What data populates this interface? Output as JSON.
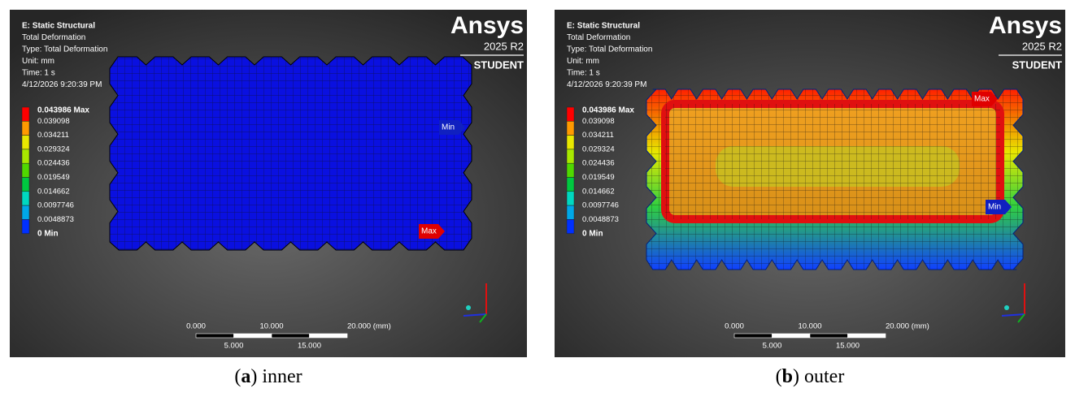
{
  "panels": [
    {
      "header": [
        "E: Static Structural",
        "Total Deformation",
        "Type: Total Deformation",
        "Unit: mm",
        "Time: 1 s",
        "4/12/2026 9:20:39 PM"
      ],
      "logo": {
        "brand": "Ansys",
        "version": "2025 R2",
        "edition": "STUDENT"
      },
      "legend": {
        "labels": [
          "0.043986 Max",
          "0.039098",
          "0.034211",
          "0.029324",
          "0.024436",
          "0.019549",
          "0.014662",
          "0.0097746",
          "0.0048873",
          "0 Min"
        ],
        "colors": [
          "#ff0000",
          "#ff9a00",
          "#e8e800",
          "#a8e800",
          "#50d800",
          "#00c840",
          "#00d8c0",
          "#00a8e8",
          "#0030ff"
        ]
      },
      "max_label": "Max",
      "min_label": "Min",
      "scale": {
        "top": [
          "0.000",
          "10.000",
          "20.000 (mm)"
        ],
        "bottom": [
          "5.000",
          "15.000"
        ]
      },
      "caption": [
        "(",
        "a",
        ") inner"
      ]
    },
    {
      "header": [
        "E: Static Structural",
        "Total Deformation",
        "Type: Total Deformation",
        "Unit: mm",
        "Time: 1 s",
        "4/12/2026 9:20:39 PM"
      ],
      "logo": {
        "brand": "Ansys",
        "version": "2025 R2",
        "edition": "STUDENT"
      },
      "legend": {
        "labels": [
          "0.043986 Max",
          "0.039098",
          "0.034211",
          "0.029324",
          "0.024436",
          "0.019549",
          "0.014662",
          "0.0097746",
          "0.0048873",
          "0 Min"
        ],
        "colors": [
          "#ff0000",
          "#ff9a00",
          "#e8e800",
          "#a8e800",
          "#50d800",
          "#00c840",
          "#00d8c0",
          "#00a8e8",
          "#0030ff"
        ]
      },
      "max_label": "Max",
      "min_label": "Min",
      "scale": {
        "top": [
          "0.000",
          "10.000",
          "20.000 (mm)"
        ],
        "bottom": [
          "5.000",
          "15.000"
        ]
      },
      "caption": [
        "(",
        "b",
        ") outer"
      ]
    }
  ]
}
